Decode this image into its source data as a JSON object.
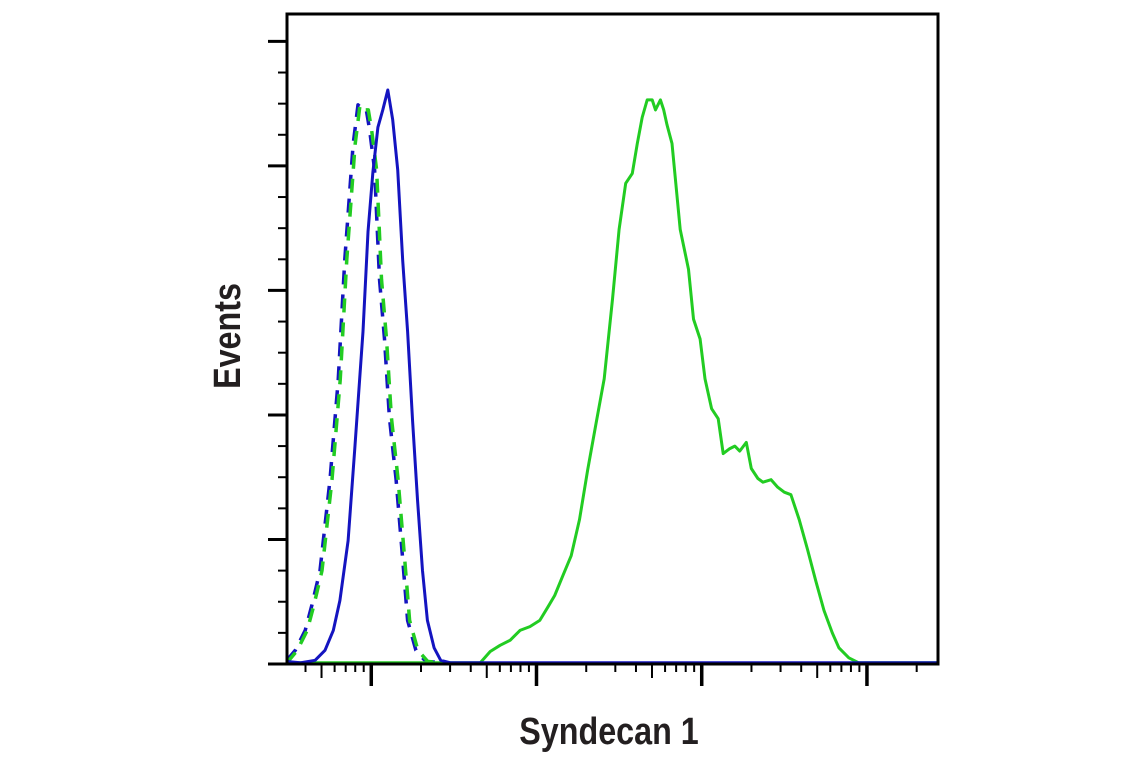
{
  "chart_data": {
    "type": "line",
    "title": "",
    "xlabel": "Syndecan 1",
    "ylabel": "Events",
    "x_scale": "log",
    "xlim": [
      1.49,
      5.43
    ],
    "ylim": [
      0,
      5.22
    ],
    "x_major_ticks": [
      2,
      3,
      4,
      5
    ],
    "y_major_ticks": [
      0,
      1,
      2,
      3,
      4,
      5
    ],
    "y_minor_step": 0.25,
    "tick_labels_shown": false,
    "grid": false,
    "legend": "none",
    "series": [
      {
        "color": "#1414c0",
        "style": "dashed",
        "points": [
          [
            1.49,
            0.03
          ],
          [
            1.54,
            0.11
          ],
          [
            1.6,
            0.27
          ],
          [
            1.64,
            0.47
          ],
          [
            1.69,
            0.75
          ],
          [
            1.75,
            1.48
          ],
          [
            1.8,
            2.28
          ],
          [
            1.84,
            3.25
          ],
          [
            1.89,
            4.17
          ],
          [
            1.92,
            4.49
          ],
          [
            1.95,
            4.45
          ],
          [
            1.97,
            4.45
          ],
          [
            1.99,
            4.29
          ],
          [
            2.02,
            3.97
          ],
          [
            2.05,
            3.09
          ],
          [
            2.08,
            2.61
          ],
          [
            2.11,
            1.98
          ],
          [
            2.15,
            1.48
          ],
          [
            2.19,
            0.84
          ],
          [
            2.22,
            0.35
          ],
          [
            2.27,
            0.11
          ],
          [
            2.33,
            0.02
          ],
          [
            2.45,
            0.01
          ]
        ]
      },
      {
        "color": "#22cc22",
        "style": "dashed",
        "points": [
          [
            1.49,
            0.03
          ],
          [
            1.54,
            0.11
          ],
          [
            1.6,
            0.27
          ],
          [
            1.64,
            0.47
          ],
          [
            1.69,
            0.75
          ],
          [
            1.75,
            1.48
          ],
          [
            1.8,
            2.28
          ],
          [
            1.84,
            3.25
          ],
          [
            1.89,
            4.17
          ],
          [
            1.92,
            4.49
          ],
          [
            1.95,
            4.45
          ],
          [
            1.97,
            4.45
          ],
          [
            1.99,
            4.29
          ],
          [
            2.02,
            3.97
          ],
          [
            2.05,
            3.09
          ],
          [
            2.08,
            2.61
          ],
          [
            2.11,
            1.98
          ],
          [
            2.15,
            1.48
          ],
          [
            2.19,
            0.84
          ],
          [
            2.22,
            0.35
          ],
          [
            2.27,
            0.11
          ],
          [
            2.33,
            0.02
          ],
          [
            2.45,
            0.01
          ]
        ]
      },
      {
        "color": "#22cc22",
        "style": "solid",
        "points": [
          [
            1.49,
            0.01
          ],
          [
            2.66,
            0.01
          ],
          [
            2.72,
            0.1
          ],
          [
            2.78,
            0.15
          ],
          [
            2.84,
            0.19
          ],
          [
            2.9,
            0.27
          ],
          [
            2.96,
            0.3
          ],
          [
            3.02,
            0.35
          ],
          [
            3.07,
            0.46
          ],
          [
            3.11,
            0.55
          ],
          [
            3.16,
            0.71
          ],
          [
            3.21,
            0.87
          ],
          [
            3.26,
            1.16
          ],
          [
            3.31,
            1.56
          ],
          [
            3.36,
            1.93
          ],
          [
            3.41,
            2.29
          ],
          [
            3.46,
            2.93
          ],
          [
            3.5,
            3.49
          ],
          [
            3.54,
            3.86
          ],
          [
            3.58,
            3.94
          ],
          [
            3.61,
            4.18
          ],
          [
            3.64,
            4.39
          ],
          [
            3.67,
            4.53
          ],
          [
            3.7,
            4.53
          ],
          [
            3.72,
            4.45
          ],
          [
            3.75,
            4.53
          ],
          [
            3.77,
            4.45
          ],
          [
            3.79,
            4.33
          ],
          [
            3.82,
            4.18
          ],
          [
            3.87,
            3.49
          ],
          [
            3.92,
            3.17
          ],
          [
            3.95,
            2.77
          ],
          [
            3.99,
            2.61
          ],
          [
            4.02,
            2.29
          ],
          [
            4.06,
            2.05
          ],
          [
            4.1,
            1.97
          ],
          [
            4.13,
            1.69
          ],
          [
            4.17,
            1.73
          ],
          [
            4.2,
            1.75
          ],
          [
            4.23,
            1.71
          ],
          [
            4.27,
            1.78
          ],
          [
            4.3,
            1.57
          ],
          [
            4.34,
            1.49
          ],
          [
            4.37,
            1.46
          ],
          [
            4.42,
            1.48
          ],
          [
            4.46,
            1.42
          ],
          [
            4.5,
            1.38
          ],
          [
            4.54,
            1.36
          ],
          [
            4.59,
            1.16
          ],
          [
            4.64,
            0.92
          ],
          [
            4.69,
            0.67
          ],
          [
            4.74,
            0.43
          ],
          [
            4.79,
            0.25
          ],
          [
            4.83,
            0.13
          ],
          [
            4.89,
            0.05
          ],
          [
            4.95,
            0.01
          ],
          [
            5.43,
            0.01
          ]
        ]
      },
      {
        "color": "#1414c0",
        "style": "solid",
        "points": [
          [
            1.49,
            0.02
          ],
          [
            1.57,
            0.01
          ],
          [
            1.66,
            0.03
          ],
          [
            1.72,
            0.11
          ],
          [
            1.77,
            0.27
          ],
          [
            1.81,
            0.51
          ],
          [
            1.86,
            0.99
          ],
          [
            1.9,
            1.72
          ],
          [
            1.95,
            2.67
          ],
          [
            1.98,
            3.47
          ],
          [
            2.01,
            3.95
          ],
          [
            2.04,
            4.31
          ],
          [
            2.07,
            4.45
          ],
          [
            2.1,
            4.61
          ],
          [
            2.13,
            4.37
          ],
          [
            2.16,
            3.97
          ],
          [
            2.19,
            3.24
          ],
          [
            2.22,
            2.67
          ],
          [
            2.25,
            1.95
          ],
          [
            2.28,
            1.32
          ],
          [
            2.31,
            0.75
          ],
          [
            2.34,
            0.35
          ],
          [
            2.38,
            0.13
          ],
          [
            2.42,
            0.03
          ],
          [
            2.48,
            0.01
          ],
          [
            5.43,
            0.01
          ]
        ]
      }
    ]
  }
}
